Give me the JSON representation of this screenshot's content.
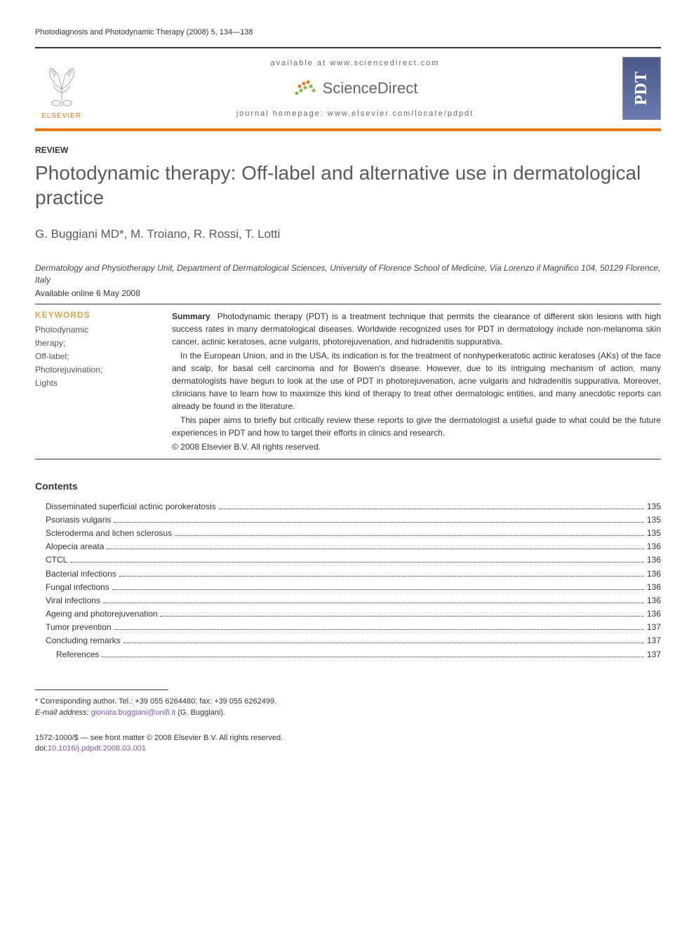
{
  "journal_ref": "Photodiagnosis and Photodynamic Therapy (2008) 5, 134—138",
  "header": {
    "available": "available at www.sciencedirect.com",
    "sciencedirect": "ScienceDirect",
    "homepage": "journal homepage: www.elsevier.com/locate/pdpdt",
    "elsevier": "ELSEVIER",
    "cover_text": "PDT"
  },
  "article_type": "REVIEW",
  "title": "Photodynamic therapy: Off-label and alternative use in dermatological practice",
  "authors": "G. Buggiani MD*, M. Troiano, R. Rossi, T. Lotti",
  "affiliation": "Dermatology and Physiotherapy Unit, Department of Dermatological Sciences, University of Florence School of Medicine, Via Lorenzo il Magnifico 104, 50129 Florence, Italy",
  "online_date": "Available online 6 May 2008",
  "keywords": {
    "title": "KEYWORDS",
    "items": "Photodynamic\n   therapy;\nOff-label;\nPhotorejuvination;\nLights"
  },
  "summary": {
    "label": "Summary",
    "p1": "Photodynamic therapy (PDT) is a treatment technique that permits the clearance of different skin lesions with high success rates in many dermatological diseases. Worldwide recognized uses for PDT in dermatology include non-melanoma skin cancer, actinic keratoses, acne vulgaris, photorejuvenation, and hidradenitis suppurativa.",
    "p2": "In the European Union, and in the USA, its indication is for the treatment of nonhyperkeratotic actinic keratoses (AKs) of the face and scalp, for basal cell carcinoma and for Bowen's disease. However, due to its intriguing mechanism of action, many dermatologists have begun to look at the use of PDT in photorejuvenation, acne vulgaris and hidradenitis suppurativa. Moreover, clinicians have to learn how to maximize this kind of therapy to treat other dermatologic entities, and many anecdotic reports can already be found in the literature.",
    "p3": "This paper aims to briefly but critically review these reports to give the dermatologist a useful guide to what could be the future experiences in PDT and how to target their efforts in clinics and research.",
    "copyright": "© 2008 Elsevier B.V. All rights reserved."
  },
  "contents": {
    "title": "Contents",
    "items": [
      {
        "label": "Disseminated superficial actinic porokeratosis",
        "page": "135",
        "indent": false
      },
      {
        "label": "Psoriasis vulgaris",
        "page": "135",
        "indent": false
      },
      {
        "label": "Scleroderma and lichen sclerosus",
        "page": "135",
        "indent": false
      },
      {
        "label": "Alopecia areata",
        "page": "136",
        "indent": false
      },
      {
        "label": "CTCL",
        "page": "136",
        "indent": false
      },
      {
        "label": "Bacterial infections",
        "page": "136",
        "indent": false
      },
      {
        "label": "Fungal infections",
        "page": "136",
        "indent": false
      },
      {
        "label": "Viral infections",
        "page": "136",
        "indent": false
      },
      {
        "label": "Ageing and photorejuvenation",
        "page": "136",
        "indent": false
      },
      {
        "label": "Tumor prevention",
        "page": "137",
        "indent": false
      },
      {
        "label": "Concluding remarks",
        "page": "137",
        "indent": false
      },
      {
        "label": "References",
        "page": "137",
        "indent": true
      }
    ]
  },
  "footnote": {
    "corresponding": "* Corresponding author. Tel.: +39 055 6264480; fax: +39 055 6262499.",
    "email_label": "E-mail address:",
    "email": "gionata.buggiani@unifi.it",
    "email_suffix": "(G. Buggiani)."
  },
  "bottom": {
    "issn": "1572-1000/$ — see front matter © 2008 Elsevier B.V. All rights reserved.",
    "doi_prefix": "doi:",
    "doi": "10.1016/j.pdpdt.2008.03.001"
  },
  "colors": {
    "orange": "#e67817",
    "gold": "#d4a84a",
    "gray_text": "#5a5a5a",
    "link": "#7a5ab0",
    "sd_green": "#8bb84a",
    "sd_orange": "#e67817"
  }
}
